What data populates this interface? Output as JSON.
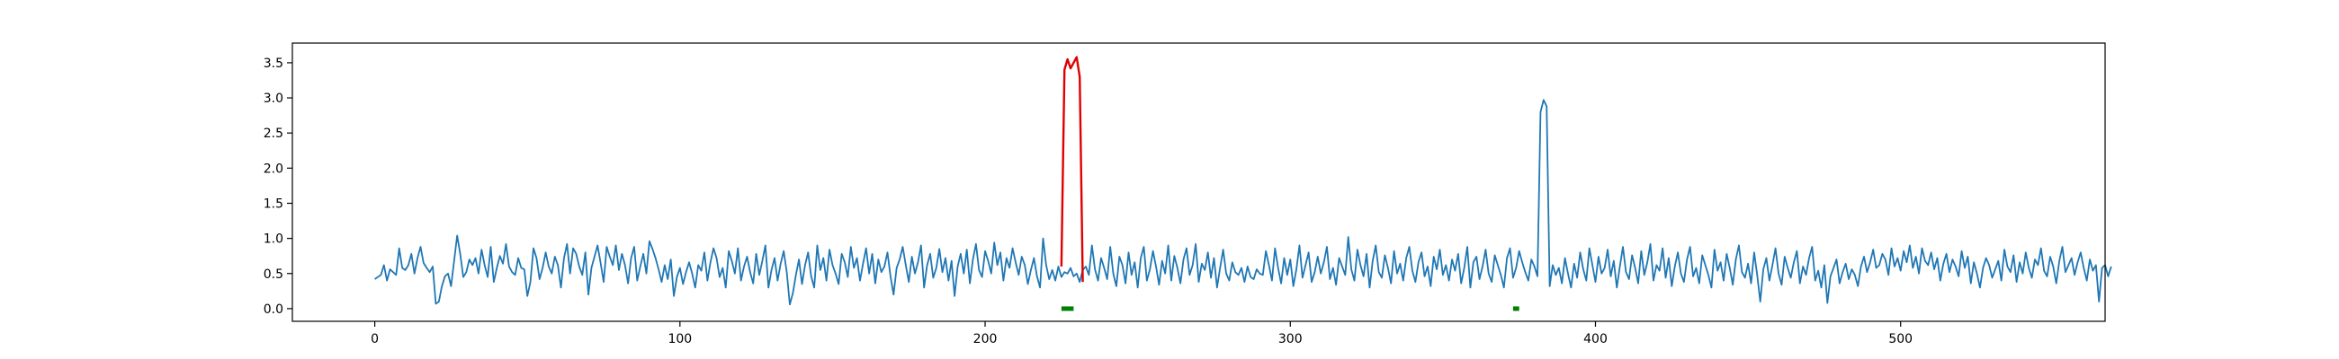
{
  "chart_data": {
    "type": "line",
    "title": "",
    "xlabel": "",
    "ylabel": "",
    "xlim": [
      -27,
      567
    ],
    "ylim": [
      -0.18,
      3.78
    ],
    "x_ticks": [
      0,
      100,
      200,
      300,
      400,
      500
    ],
    "y_ticks": [
      0.0,
      0.5,
      1.0,
      1.5,
      2.0,
      2.5,
      3.0,
      3.5
    ],
    "x_tick_labels": [
      "0",
      "100",
      "200",
      "300",
      "400",
      "500"
    ],
    "y_tick_labels": [
      "0.0",
      "0.5",
      "1.0",
      "1.5",
      "2.0",
      "2.5",
      "3.0",
      "3.5"
    ],
    "grid": false,
    "legend": "none",
    "series": [
      {
        "role": "signal",
        "color": "#1f77b4",
        "x_start": 0,
        "x_step": 1,
        "values": [
          0.42,
          0.45,
          0.48,
          0.62,
          0.4,
          0.56,
          0.52,
          0.48,
          0.86,
          0.58,
          0.55,
          0.62,
          0.78,
          0.5,
          0.72,
          0.88,
          0.65,
          0.58,
          0.52,
          0.6,
          0.07,
          0.1,
          0.32,
          0.46,
          0.5,
          0.32,
          0.68,
          1.04,
          0.78,
          0.45,
          0.52,
          0.7,
          0.62,
          0.72,
          0.5,
          0.84,
          0.62,
          0.45,
          0.88,
          0.38,
          0.58,
          0.75,
          0.64,
          0.92,
          0.6,
          0.52,
          0.48,
          0.72,
          0.58,
          0.56,
          0.18,
          0.38,
          0.86,
          0.72,
          0.42,
          0.58,
          0.8,
          0.6,
          0.5,
          0.74,
          0.62,
          0.3,
          0.72,
          0.92,
          0.5,
          0.86,
          0.78,
          0.6,
          0.48,
          0.8,
          0.2,
          0.58,
          0.74,
          0.9,
          0.65,
          0.38,
          0.88,
          0.74,
          0.62,
          0.9,
          0.55,
          0.78,
          0.62,
          0.36,
          0.72,
          0.88,
          0.4,
          0.6,
          0.78,
          0.5,
          0.96,
          0.85,
          0.72,
          0.56,
          0.38,
          0.62,
          0.42,
          0.7,
          0.18,
          0.45,
          0.58,
          0.35,
          0.52,
          0.66,
          0.5,
          0.3,
          0.62,
          0.54,
          0.8,
          0.4,
          0.66,
          0.86,
          0.72,
          0.45,
          0.58,
          0.3,
          0.82,
          0.68,
          0.5,
          0.86,
          0.4,
          0.6,
          0.74,
          0.52,
          0.36,
          0.78,
          0.48,
          0.68,
          0.9,
          0.3,
          0.55,
          0.72,
          0.4,
          0.64,
          0.82,
          0.52,
          0.06,
          0.22,
          0.48,
          0.7,
          0.35,
          0.62,
          0.8,
          0.46,
          0.3,
          0.9,
          0.55,
          0.72,
          0.4,
          0.84,
          0.62,
          0.5,
          0.35,
          0.78,
          0.66,
          0.45,
          0.88,
          0.58,
          0.72,
          0.4,
          0.64,
          0.86,
          0.5,
          0.78,
          0.36,
          0.7,
          0.52,
          0.6,
          0.8,
          0.46,
          0.2,
          0.58,
          0.7,
          0.88,
          0.62,
          0.38,
          0.74,
          0.5,
          0.66,
          0.9,
          0.3,
          0.62,
          0.78,
          0.44,
          0.58,
          0.85,
          0.52,
          0.72,
          0.4,
          0.68,
          0.18,
          0.6,
          0.78,
          0.5,
          0.84,
          0.36,
          0.7,
          0.92,
          0.55,
          0.45,
          0.82,
          0.68,
          0.5,
          0.94,
          0.62,
          0.8,
          0.4,
          0.72,
          0.58,
          0.86,
          0.66,
          0.48,
          0.74,
          0.62,
          0.35,
          0.55,
          0.72,
          0.46,
          0.3,
          1.0,
          0.62,
          0.42,
          0.55,
          0.4,
          0.6,
          0.45,
          0.52,
          0.5,
          0.58,
          0.46,
          0.5,
          0.38,
          0.55,
          0.6,
          0.48,
          0.9,
          0.56,
          0.4,
          0.72,
          0.58,
          0.42,
          0.88,
          0.5,
          0.32,
          0.74,
          0.62,
          0.36,
          0.8,
          0.48,
          0.66,
          0.3,
          0.72,
          0.88,
          0.4,
          0.56,
          0.82,
          0.6,
          0.34,
          0.68,
          0.5,
          0.9,
          0.4,
          0.75,
          0.58,
          0.36,
          0.7,
          0.86,
          0.48,
          0.62,
          0.92,
          0.38,
          0.64,
          0.55,
          0.8,
          0.44,
          0.72,
          0.3,
          0.58,
          0.84,
          0.5,
          0.4,
          0.66,
          0.52,
          0.48,
          0.58,
          0.38,
          0.6,
          0.45,
          0.42,
          0.56,
          0.5,
          0.48,
          0.82,
          0.62,
          0.4,
          0.86,
          0.58,
          0.36,
          0.72,
          0.48,
          0.7,
          0.32,
          0.56,
          0.9,
          0.44,
          0.62,
          0.8,
          0.38,
          0.52,
          0.74,
          0.5,
          0.66,
          0.88,
          0.42,
          0.58,
          0.34,
          0.72,
          0.6,
          0.48,
          1.02,
          0.56,
          0.4,
          0.84,
          0.62,
          0.46,
          0.78,
          0.3,
          0.68,
          0.9,
          0.52,
          0.44,
          0.76,
          0.58,
          0.36,
          0.82,
          0.5,
          0.64,
          0.4,
          0.72,
          0.88,
          0.54,
          0.38,
          0.66,
          0.8,
          0.46,
          0.6,
          0.32,
          0.74,
          0.56,
          0.84,
          0.48,
          0.62,
          0.4,
          0.7,
          0.54,
          0.78,
          0.36,
          0.58,
          0.88,
          0.3,
          0.66,
          0.74,
          0.42,
          0.6,
          0.84,
          0.5,
          0.38,
          0.76,
          0.62,
          0.48,
          0.3,
          0.72,
          0.86,
          0.44,
          0.58,
          0.82,
          0.66,
          0.52,
          0.4,
          0.7,
          0.6,
          0.46,
          2.8,
          2.97,
          2.88,
          0.32,
          0.62,
          0.48,
          0.58,
          0.36,
          0.72,
          0.5,
          0.3,
          0.64,
          0.44,
          0.8,
          0.56,
          0.4,
          0.86,
          0.62,
          0.38,
          0.74,
          0.5,
          0.58,
          0.84,
          0.46,
          0.68,
          0.3,
          0.6,
          0.88,
          0.52,
          0.42,
          0.76,
          0.58,
          0.36,
          0.82,
          0.48,
          0.66,
          0.92,
          0.4,
          0.62,
          0.54,
          0.86,
          0.44,
          0.72,
          0.32,
          0.6,
          0.8,
          0.5,
          0.38,
          0.7,
          0.88,
          0.46,
          0.58,
          0.36,
          0.76,
          0.62,
          0.48,
          0.3,
          0.84,
          0.54,
          0.66,
          0.4,
          0.78,
          0.58,
          0.34,
          0.7,
          0.9,
          0.52,
          0.44,
          0.64,
          0.36,
          0.8,
          0.48,
          0.1,
          0.56,
          0.72,
          0.4,
          0.62,
          0.86,
          0.5,
          0.34,
          0.74,
          0.58,
          0.44,
          0.66,
          0.82,
          0.36,
          0.6,
          0.48,
          0.72,
          0.88,
          0.4,
          0.54,
          0.3,
          0.62,
          0.08,
          0.46,
          0.58,
          0.7,
          0.36,
          0.52,
          0.64,
          0.42,
          0.56,
          0.48,
          0.32,
          0.6,
          0.74,
          0.52,
          0.66,
          0.84,
          0.58,
          0.62,
          0.78,
          0.7,
          0.48,
          0.86,
          0.6,
          0.72,
          0.54,
          0.82,
          0.66,
          0.9,
          0.58,
          0.74,
          0.5,
          0.86,
          0.68,
          0.62,
          0.8,
          0.56,
          0.72,
          0.4,
          0.64,
          0.78,
          0.52,
          0.7,
          0.6,
          0.46,
          0.82,
          0.58,
          0.74,
          0.36,
          0.66,
          0.5,
          0.3,
          0.58,
          0.72,
          0.62,
          0.44,
          0.56,
          0.68,
          0.4,
          0.84,
          0.6,
          0.52,
          0.76,
          0.38,
          0.66,
          0.5,
          0.8,
          0.58,
          0.44,
          0.7,
          0.62,
          0.86,
          0.54,
          0.46,
          0.74,
          0.6,
          0.36,
          0.68,
          0.88,
          0.52,
          0.62,
          0.72,
          0.48,
          0.66,
          0.8,
          0.58,
          0.4,
          0.7,
          0.54,
          0.62,
          0.1,
          0.58,
          0.62,
          0.46,
          0.6
        ]
      },
      {
        "role": "highlighted-segment",
        "color": "#e00000",
        "x": [
          225,
          226,
          227,
          228,
          229,
          230,
          231,
          232
        ],
        "values": [
          0.6,
          3.4,
          3.55,
          3.42,
          3.5,
          3.58,
          3.3,
          0.38
        ]
      }
    ],
    "markers": {
      "color": "#008000",
      "y": 0.0,
      "segments": [
        [
          225,
          229
        ],
        [
          373,
          375
        ]
      ]
    }
  }
}
